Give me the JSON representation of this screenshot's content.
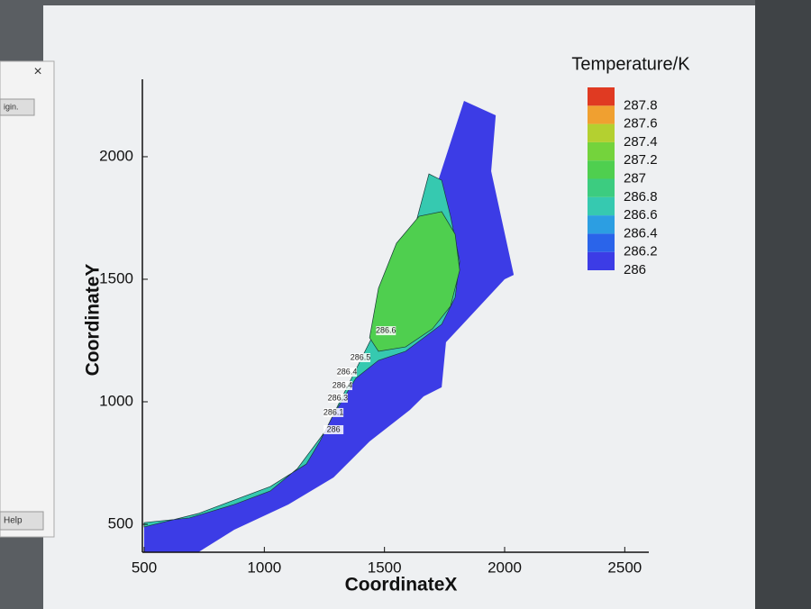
{
  "chart_data": {
    "type": "contour",
    "x_label": "CoordinateX",
    "y_label": "CoordinateY",
    "xlim": [
      500,
      2600
    ],
    "xticks": [
      500,
      1000,
      1500,
      2000,
      2500
    ],
    "ylim": [
      386,
      2316
    ],
    "yticks": [
      500,
      1000,
      1500,
      2000
    ],
    "legend_title": "Temperature/K",
    "levels": [
      286,
      286.2,
      286.4,
      286.6,
      286.8,
      287,
      287.2,
      287.4,
      287.6,
      287.8
    ],
    "level_colors": [
      "#3c3ce6",
      "#2a64ea",
      "#2c9ee2",
      "#36c9b0",
      "#3ccc80",
      "#4fcf4f",
      "#74d33c",
      "#b4d030",
      "#f0a030",
      "#e03a22"
    ],
    "regions": [
      {
        "level": 286,
        "x": [
          500,
          688,
          875,
          1025,
          1138,
          1250,
          1363,
          1475,
          1588,
          1700,
          1831,
          1963,
          1944,
          2038,
          2000,
          1756,
          1738,
          1663,
          1606,
          1438,
          1288,
          1100,
          875,
          725,
          500
        ],
        "y": [
          507,
          526,
          581,
          636,
          728,
          875,
          1096,
          1316,
          1573,
          1831,
          2228,
          2169,
          1941,
          1518,
          1500,
          1243,
          1059,
          1022,
          967,
          838,
          691,
          581,
          478,
          386,
          386
        ]
      },
      {
        "level": 286.6,
        "x": [
          500,
          688,
          875,
          1025,
          1138,
          1250,
          1363,
          1475,
          1588,
          1685,
          1738,
          1775,
          1813,
          1794,
          1738,
          1588,
          1475,
          1381,
          1288,
          1231,
          1175,
          1025,
          725,
          500
        ],
        "y": [
          507,
          526,
          581,
          636,
          728,
          875,
          1096,
          1316,
          1573,
          1930,
          1904,
          1757,
          1573,
          1426,
          1316,
          1206,
          1169,
          1096,
          948,
          838,
          746,
          654,
          544,
          489
        ]
      },
      {
        "level": 287,
        "x": [
          1438,
          1475,
          1550,
          1644,
          1738,
          1794,
          1813,
          1775,
          1700,
          1588,
          1475
        ],
        "y": [
          1261,
          1463,
          1647,
          1757,
          1776,
          1684,
          1537,
          1390,
          1298,
          1224,
          1206
        ]
      }
    ],
    "contour_labels": [
      {
        "value": 286.6,
        "x": 1506,
        "y": 1290
      },
      {
        "value": 286.5,
        "x": 1400,
        "y": 1180
      },
      {
        "value": 286.4,
        "x": 1344,
        "y": 1121
      },
      {
        "value": 286.4,
        "x": 1325,
        "y": 1066
      },
      {
        "value": 286.3,
        "x": 1306,
        "y": 1015
      },
      {
        "value": 286.1,
        "x": 1288,
        "y": 956
      },
      {
        "value": 286,
        "x": 1288,
        "y": 886
      }
    ]
  },
  "dialog": {
    "close": "×",
    "button_1": "igin.",
    "button_2": "Help"
  }
}
